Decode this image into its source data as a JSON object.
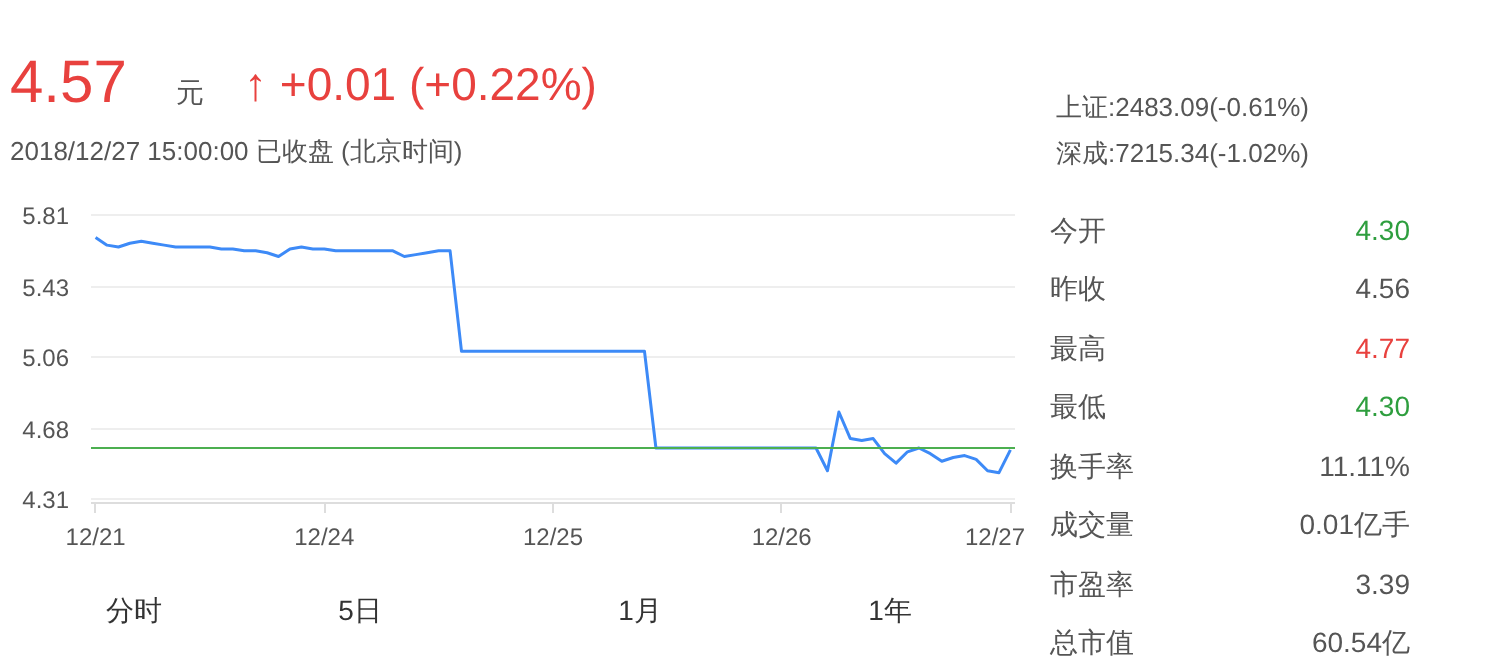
{
  "chart_data": {
    "type": "line",
    "title": "4.57",
    "subtitle": "2018/12/27 15:00:00  已收盘  (北京时间)",
    "categories": [
      "12/21",
      null,
      null,
      null,
      null,
      null,
      null,
      null,
      null,
      null,
      null,
      null,
      null,
      null,
      null,
      null,
      null,
      null,
      null,
      null,
      "12/24",
      null,
      null,
      null,
      null,
      null,
      null,
      null,
      null,
      null,
      null,
      null,
      null,
      null,
      null,
      null,
      null,
      null,
      null,
      null,
      "12/25",
      null,
      null,
      null,
      null,
      null,
      null,
      null,
      null,
      null,
      null,
      null,
      null,
      null,
      null,
      null,
      null,
      null,
      null,
      null,
      "12/26",
      null,
      null,
      null,
      null,
      null,
      null,
      null,
      null,
      null,
      null,
      null,
      null,
      null,
      null,
      null,
      null,
      null,
      null,
      null,
      "12/27"
    ],
    "series": [
      {
        "color": "#3d8af7",
        "values": [
          5.69,
          5.65,
          5.64,
          5.66,
          5.67,
          5.66,
          5.65,
          5.64,
          5.64,
          5.64,
          5.64,
          5.63,
          5.63,
          5.62,
          5.62,
          5.61,
          5.59,
          5.63,
          5.64,
          5.63,
          5.63,
          5.62,
          5.62,
          5.62,
          5.62,
          5.62,
          5.62,
          5.59,
          5.6,
          5.61,
          5.62,
          5.62,
          5.09,
          5.09,
          5.09,
          5.09,
          5.09,
          5.09,
          5.09,
          5.09,
          5.09,
          5.09,
          5.09,
          5.09,
          5.09,
          5.09,
          5.09,
          5.09,
          5.09,
          4.58,
          4.58,
          4.58,
          4.58,
          4.58,
          4.58,
          4.58,
          4.58,
          4.58,
          4.58,
          4.58,
          4.58,
          4.58,
          4.58,
          4.58,
          4.46,
          4.77,
          4.63,
          4.62,
          4.63,
          4.55,
          4.5,
          4.56,
          4.58,
          4.55,
          4.51,
          4.53,
          4.54,
          4.52,
          4.46,
          4.45,
          4.57
        ]
      }
    ],
    "ylim": [
      4.29,
      5.83
    ],
    "yticks": [
      4.31,
      4.68,
      5.06,
      5.43,
      5.81
    ],
    "ref_lines": [
      {
        "axis": "y",
        "value": 4.58,
        "color": "#4caf50"
      }
    ],
    "grid": "y",
    "marker": "none",
    "line_style": "solid",
    "annotations": [
      "元",
      "↑ +0.01 (+0.22%)",
      "上证:2483.09(-0.61%)",
      "深成:7215.34(-1.02%)",
      "今开",
      "4.30",
      "昨收",
      "4.56",
      "最高",
      "4.77",
      "最低",
      "4.30",
      "换手率",
      "11.11%",
      "成交量",
      "0.01亿手",
      "市盈率",
      "3.39",
      "总市值",
      "60.54亿",
      "分时",
      "5日",
      "1月",
      "1年"
    ]
  }
}
